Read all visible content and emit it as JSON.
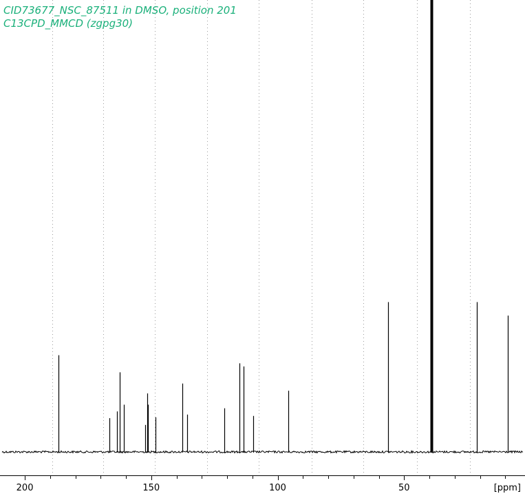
{
  "chart_data": {
    "type": "line",
    "title_lines": [
      "CID73677_NSC_87511 in DMSO, position 201",
      "C13CPD_MMCD (zgpg30)"
    ],
    "xlabel": "[ppm]",
    "xlim": [
      209,
      3
    ],
    "x_reversed": true,
    "x_ticks": [
      200,
      150,
      100,
      50
    ],
    "x_minor_tick_step": 10,
    "grid": "vertical dotted",
    "grid_ppm": [
      189,
      169,
      148.5,
      128,
      107.5,
      86.5,
      66,
      45,
      24
    ],
    "baseline_ppm_range": [
      209,
      3
    ],
    "y_normalized_note": "relative intensity, solvent peak clipped at 1.0",
    "peaks": [
      {
        "ppm": 186.7,
        "intensity": 0.215
      },
      {
        "ppm": 166.5,
        "intensity": 0.075
      },
      {
        "ppm": 163.5,
        "intensity": 0.09
      },
      {
        "ppm": 162.6,
        "intensity": 0.177
      },
      {
        "ppm": 160.9,
        "intensity": 0.105
      },
      {
        "ppm": 152.4,
        "intensity": 0.06
      },
      {
        "ppm": 151.6,
        "intensity": 0.13
      },
      {
        "ppm": 151.2,
        "intensity": 0.105
      },
      {
        "ppm": 148.4,
        "intensity": 0.077
      },
      {
        "ppm": 137.8,
        "intensity": 0.152
      },
      {
        "ppm": 135.9,
        "intensity": 0.083
      },
      {
        "ppm": 121.2,
        "intensity": 0.097
      },
      {
        "ppm": 115.0,
        "intensity": 0.197
      },
      {
        "ppm": 113.6,
        "intensity": 0.19
      },
      {
        "ppm": 109.6,
        "intensity": 0.08
      },
      {
        "ppm": 95.7,
        "intensity": 0.136
      },
      {
        "ppm": 56.4,
        "intensity": 0.333
      },
      {
        "ppm": 39.5,
        "intensity": 1.0
      },
      {
        "ppm": 39.2,
        "intensity": 1.0
      },
      {
        "ppm": 38.9,
        "intensity": 1.0
      },
      {
        "ppm": 21.1,
        "intensity": 0.333
      },
      {
        "ppm": 9.0,
        "intensity": 0.303
      }
    ],
    "colors": {
      "title": "#1ab07a",
      "trace": "#000000",
      "grid": "#9a9a9a",
      "axis": "#000000"
    }
  }
}
